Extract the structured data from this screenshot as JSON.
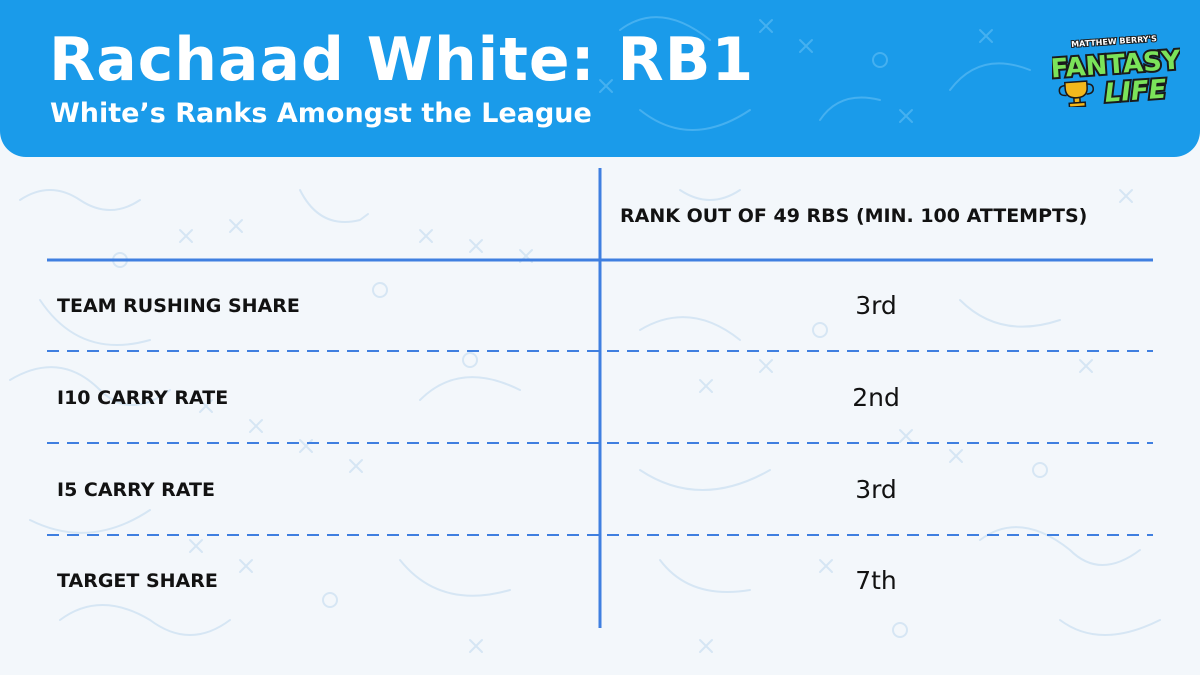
{
  "header": {
    "title": "Rachaad White: RB1",
    "subtitle": "White’s Ranks Amongst the League"
  },
  "logo": {
    "top_text": "MATTHEW BERRY'S",
    "main_text": "FANTASY",
    "sub_text": "LIFE",
    "icon": "trophy-icon"
  },
  "chart_data": {
    "type": "table",
    "column_header": "RANK OUT OF 49 RBS (MIN. 100 ATTEMPTS)",
    "rows": [
      {
        "label": "TEAM RUSHING SHARE",
        "value": "3rd"
      },
      {
        "label": "I10 CARRY RATE",
        "value": "2nd"
      },
      {
        "label": "I5 CARRY RATE",
        "value": "3rd"
      },
      {
        "label": "TARGET SHARE",
        "value": "7th"
      }
    ]
  },
  "colors": {
    "header_bg": "#1a9bea",
    "page_bg": "#f3f7fb",
    "grid_line": "#3f7fe0",
    "text": "#121212",
    "logo_green": "#7be35a",
    "logo_gold": "#f2b81c"
  }
}
